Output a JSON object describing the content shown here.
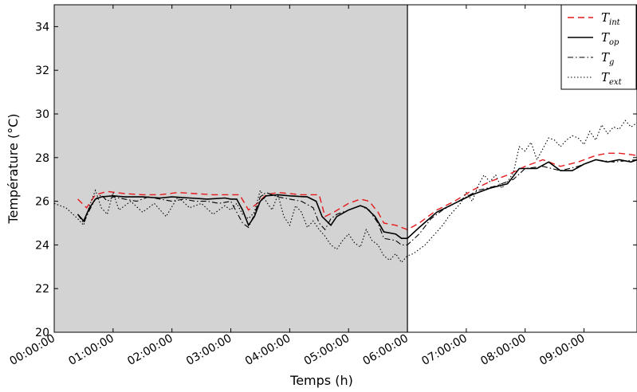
{
  "chart_data": {
    "type": "line",
    "xlabel": "Temps (h)",
    "ylabel": "Température (°C)",
    "ylim": [
      20,
      35
    ],
    "xlim_hours": [
      0,
      9.9
    ],
    "x_tick_labels": [
      "00:00:00",
      "01:00:00",
      "02:00:00",
      "03:00:00",
      "04:00:00",
      "05:00:00",
      "06:00:00",
      "07:00:00",
      "08:00:00",
      "09:00:00"
    ],
    "y_ticks": [
      20,
      22,
      24,
      26,
      28,
      30,
      32,
      34
    ],
    "shaded_region_hours": [
      0,
      6
    ],
    "grid": false,
    "legend_position": "top-right",
    "x_unit_note": "x values are elapsed time in hours (h)",
    "series": [
      {
        "key": "T_int",
        "name": "T",
        "subscript": "int",
        "color": "#e41a1c",
        "style": "dashed",
        "x": [
          0.4,
          0.55,
          0.7,
          0.9,
          1.2,
          1.5,
          1.8,
          2.1,
          2.4,
          2.7,
          3.0,
          3.15,
          3.3,
          3.45,
          3.6,
          3.8,
          4.0,
          4.2,
          4.5,
          4.6,
          4.75,
          5.0,
          5.2,
          5.35,
          5.5,
          5.6,
          5.8,
          6.0,
          6.2,
          6.5,
          6.8,
          7.1,
          7.4,
          7.7,
          8.0,
          8.3,
          8.6,
          8.9,
          9.2,
          9.4,
          9.6,
          9.9
        ],
        "y": [
          26.1,
          25.7,
          26.3,
          26.45,
          26.35,
          26.3,
          26.3,
          26.4,
          26.35,
          26.3,
          26.3,
          26.3,
          25.6,
          25.9,
          26.3,
          26.4,
          26.35,
          26.3,
          26.3,
          25.3,
          25.5,
          25.9,
          26.1,
          26.0,
          25.5,
          25.0,
          24.9,
          24.7,
          25.0,
          25.6,
          26.0,
          26.5,
          26.9,
          27.2,
          27.6,
          27.9,
          27.6,
          27.8,
          28.1,
          28.2,
          28.2,
          28.1
        ]
      },
      {
        "key": "T_op",
        "name": "T",
        "subscript": "op",
        "color": "#000000",
        "style": "solid",
        "x": [
          0.4,
          0.5,
          0.6,
          0.7,
          0.8,
          1.0,
          1.2,
          1.5,
          1.8,
          2.0,
          2.3,
          2.6,
          2.9,
          3.0,
          3.1,
          3.2,
          3.3,
          3.4,
          3.5,
          3.6,
          3.8,
          4.0,
          4.3,
          4.45,
          4.55,
          4.7,
          4.8,
          5.0,
          5.2,
          5.3,
          5.45,
          5.6,
          5.8,
          5.9,
          6.0,
          6.2,
          6.5,
          6.8,
          7.1,
          7.4,
          7.7,
          7.9,
          8.2,
          8.4,
          8.6,
          8.8,
          9.0,
          9.2,
          9.4,
          9.6,
          9.8,
          9.9
        ],
        "y": [
          25.4,
          25.1,
          25.7,
          26.1,
          26.2,
          26.25,
          26.2,
          26.2,
          26.15,
          26.2,
          26.15,
          26.1,
          26.15,
          26.1,
          26.1,
          25.6,
          24.9,
          25.3,
          26.0,
          26.25,
          26.3,
          26.25,
          26.2,
          26.0,
          25.3,
          24.9,
          25.3,
          25.6,
          25.8,
          25.7,
          25.3,
          24.6,
          24.5,
          24.3,
          24.3,
          24.8,
          25.5,
          25.9,
          26.3,
          26.6,
          26.8,
          27.5,
          27.5,
          27.8,
          27.4,
          27.4,
          27.7,
          27.9,
          27.8,
          27.9,
          27.8,
          27.9
        ]
      },
      {
        "key": "T_g",
        "name": "T",
        "subscript": "g",
        "color": "#000000",
        "style": "dashdot",
        "x": [
          0.4,
          0.5,
          0.6,
          0.7,
          0.8,
          0.9,
          1.0,
          1.2,
          1.4,
          1.6,
          1.8,
          2.0,
          2.2,
          2.4,
          2.6,
          2.8,
          3.0,
          3.1,
          3.2,
          3.3,
          3.4,
          3.5,
          3.6,
          3.8,
          4.0,
          4.2,
          4.4,
          4.5,
          4.6,
          4.7,
          4.8,
          5.0,
          5.2,
          5.35,
          5.5,
          5.6,
          5.8,
          5.9,
          6.0,
          6.2,
          6.4,
          6.6,
          6.8,
          7.0,
          7.2,
          7.5,
          7.8,
          8.0,
          8.3,
          8.6,
          8.9,
          9.2,
          9.5,
          9.9
        ],
        "y": [
          25.4,
          25.0,
          25.6,
          26.1,
          26.3,
          26.0,
          26.2,
          26.1,
          26.0,
          26.2,
          26.1,
          26.0,
          26.1,
          26.0,
          26.0,
          25.9,
          26.0,
          25.5,
          25.0,
          24.8,
          25.4,
          26.2,
          26.4,
          26.2,
          26.1,
          26.0,
          25.7,
          25.0,
          24.7,
          25.2,
          25.4,
          25.6,
          25.8,
          25.6,
          25.0,
          24.3,
          24.2,
          24.0,
          24.0,
          24.5,
          25.2,
          25.6,
          25.9,
          26.2,
          26.5,
          26.7,
          27.0,
          27.5,
          27.6,
          27.4,
          27.6,
          27.9,
          27.8,
          27.9
        ]
      },
      {
        "key": "T_ext",
        "name": "T",
        "subscript": "ext",
        "color": "#000000",
        "style": "dotted",
        "x": [
          0.0,
          0.2,
          0.4,
          0.5,
          0.6,
          0.7,
          0.8,
          0.9,
          1.0,
          1.1,
          1.3,
          1.5,
          1.7,
          1.9,
          2.1,
          2.3,
          2.5,
          2.7,
          2.9,
          3.0,
          3.1,
          3.2,
          3.3,
          3.4,
          3.5,
          3.6,
          3.7,
          3.8,
          3.9,
          4.0,
          4.1,
          4.2,
          4.3,
          4.4,
          4.5,
          4.6,
          4.7,
          4.8,
          4.9,
          5.0,
          5.1,
          5.2,
          5.3,
          5.4,
          5.5,
          5.6,
          5.7,
          5.8,
          5.9,
          6.0,
          6.1,
          6.2,
          6.3,
          6.4,
          6.5,
          6.6,
          6.7,
          6.8,
          6.9,
          7.0,
          7.1,
          7.2,
          7.3,
          7.4,
          7.5,
          7.6,
          7.7,
          7.8,
          7.9,
          8.0,
          8.1,
          8.2,
          8.3,
          8.4,
          8.5,
          8.6,
          8.7,
          8.8,
          8.9,
          9.0,
          9.1,
          9.2,
          9.3,
          9.4,
          9.5,
          9.6,
          9.7,
          9.8,
          9.9
        ],
        "y": [
          25.9,
          25.7,
          25.2,
          24.9,
          25.8,
          26.5,
          25.7,
          25.4,
          26.4,
          25.6,
          26.0,
          25.5,
          25.9,
          25.3,
          26.2,
          25.7,
          25.9,
          25.4,
          25.8,
          25.6,
          25.9,
          25.4,
          25.2,
          25.5,
          26.5,
          26.0,
          25.6,
          26.3,
          25.3,
          24.9,
          25.8,
          25.5,
          24.8,
          25.1,
          24.7,
          24.4,
          24.0,
          23.8,
          24.2,
          24.5,
          24.1,
          23.9,
          24.7,
          24.2,
          24.0,
          23.5,
          23.3,
          23.6,
          23.2,
          23.5,
          23.6,
          23.8,
          24.0,
          24.3,
          24.6,
          24.9,
          25.3,
          25.6,
          25.9,
          26.4,
          26.0,
          26.7,
          27.2,
          26.9,
          27.2,
          26.6,
          26.9,
          27.3,
          28.5,
          28.3,
          28.7,
          27.9,
          28.4,
          28.9,
          28.8,
          28.5,
          28.8,
          29.0,
          28.9,
          28.6,
          29.2,
          28.8,
          29.5,
          29.1,
          29.4,
          29.3,
          29.7,
          29.4,
          29.6
        ]
      }
    ]
  }
}
